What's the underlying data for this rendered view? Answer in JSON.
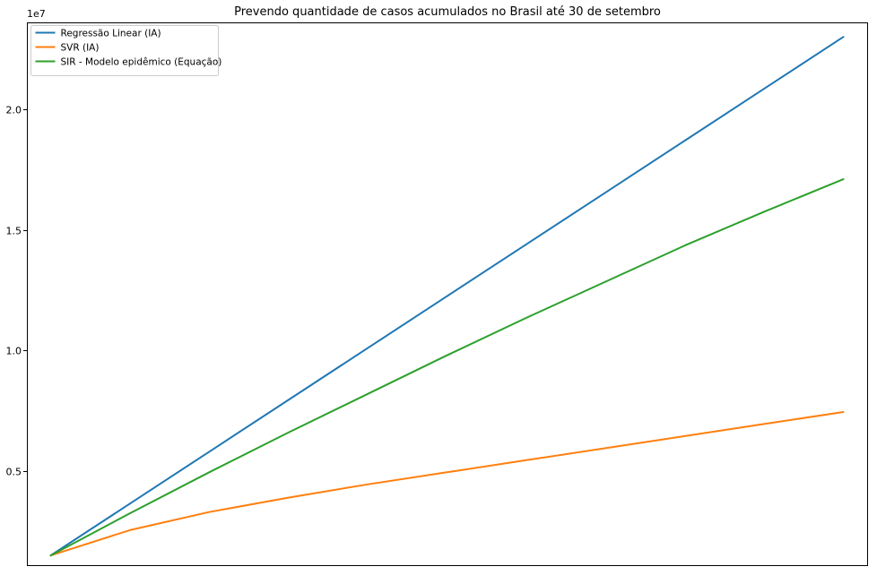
{
  "chart_data": {
    "type": "line",
    "title": "Prevendo quantidade de casos acumulados no Brasil até 30 de setembro",
    "xlabel": "",
    "ylabel": "",
    "y_offset_label": "1e7",
    "x_ticks_visible": false,
    "xlim": [
      -3,
      103
    ],
    "ylim": [
      1100000,
      23600000
    ],
    "y_ticks": [
      {
        "value": 5000000,
        "label": "0.5"
      },
      {
        "value": 10000000,
        "label": "1.0"
      },
      {
        "value": 15000000,
        "label": "1.5"
      },
      {
        "value": 20000000,
        "label": "2.0"
      }
    ],
    "grid": false,
    "legend_position": "top-left",
    "x": [
      0,
      10,
      20,
      30,
      40,
      50,
      60,
      70,
      80,
      90,
      100
    ],
    "series": [
      {
        "name": "Regressão Linear (IA)",
        "color": "#1f77b4",
        "values": [
          1500000,
          3650000,
          5800000,
          7950000,
          10100000,
          12250000,
          14400000,
          16550000,
          18700000,
          20850000,
          23000000
        ]
      },
      {
        "name": "SVR (IA)",
        "color": "#ff7f0e",
        "values": [
          1500000,
          2550000,
          3300000,
          3900000,
          4450000,
          4950000,
          5450000,
          5950000,
          6450000,
          6950000,
          7450000
        ]
      },
      {
        "name": "SIR - Modelo epidêmico (Equação)",
        "color": "#2ca02c",
        "values": [
          1500000,
          3250000,
          4950000,
          6600000,
          8200000,
          9800000,
          11350000,
          12850000,
          14350000,
          15750000,
          17100000
        ]
      }
    ]
  }
}
